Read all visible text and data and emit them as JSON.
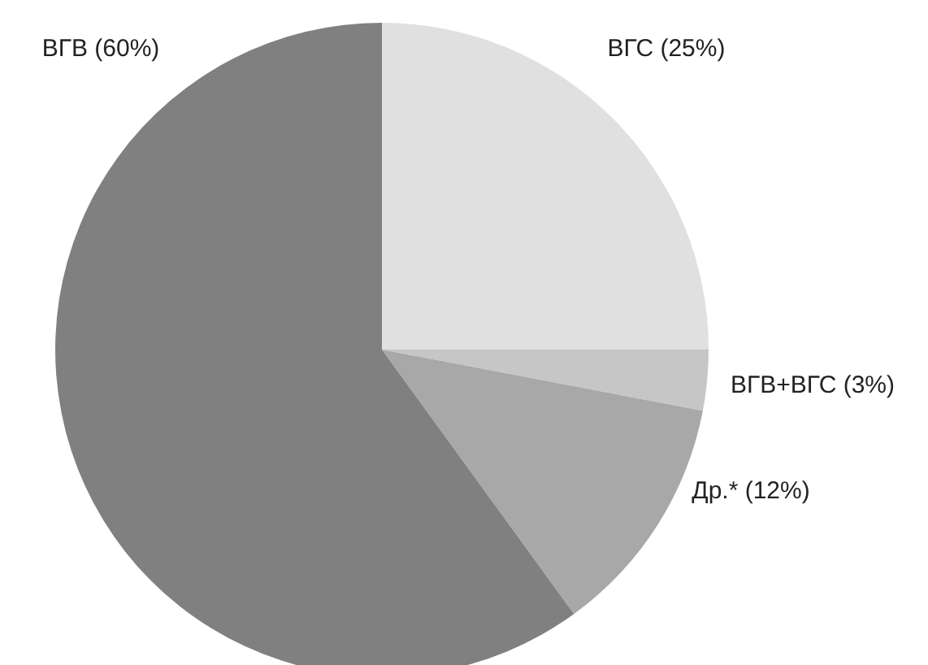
{
  "chart_data": {
    "type": "pie",
    "categories": [
      "ВГС (25%)",
      "ВГВ+ВГС (3%)",
      "Др.* (12%)",
      "ВГВ (60%)"
    ],
    "values": [
      25,
      3,
      12,
      60
    ],
    "colors": [
      "#e0e0e0",
      "#c6c6c6",
      "#a8a8a8",
      "#808080"
    ],
    "legend": false
  }
}
